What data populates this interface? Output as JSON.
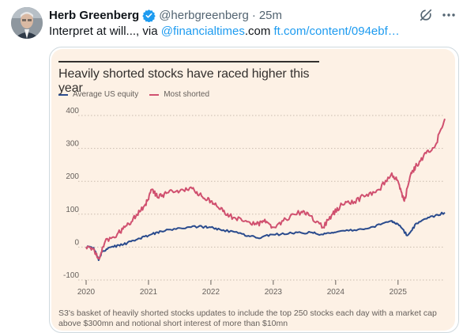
{
  "tweet": {
    "author_name": "Herb Greenberg",
    "handle": "@herbgreenberg",
    "dot": "·",
    "time": "25m",
    "text_plain": "Interpret at will..., via ",
    "mention": "@financialtimes",
    "text_suffix": ".com ",
    "url": "ft.com/content/094ebf…",
    "icons": [
      "verified-badge-icon",
      "grok-icon",
      "more-icon"
    ]
  },
  "chart_data": {
    "type": "line",
    "title": "Heavily shorted stocks have raced higher this year",
    "x_tick_labels": [
      "2020",
      "2021",
      "2022",
      "2023",
      "2024",
      "2025"
    ],
    "y_tick_labels": [
      "400",
      "300",
      "200",
      "100",
      "0",
      "-100"
    ],
    "ylim": [
      -100,
      400
    ],
    "xlim": [
      2020.0,
      2025.75
    ],
    "grid": "horizontal-dotted",
    "legend_position": "top-left",
    "series": [
      {
        "name": "Average US equity",
        "color": "#2a4b8d",
        "x": [
          2020.0,
          2020.12,
          2020.2,
          2020.25,
          2020.4,
          2020.6,
          2020.8,
          2021.0,
          2021.2,
          2021.5,
          2021.8,
          2022.0,
          2022.2,
          2022.5,
          2022.75,
          2023.0,
          2023.3,
          2023.6,
          2023.8,
          2024.0,
          2024.3,
          2024.6,
          2024.9,
          2025.0,
          2025.15,
          2025.3,
          2025.5,
          2025.75
        ],
        "values": [
          0,
          -2,
          -40,
          -15,
          0,
          8,
          22,
          35,
          48,
          58,
          62,
          60,
          52,
          40,
          28,
          38,
          42,
          45,
          38,
          45,
          52,
          62,
          80,
          70,
          35,
          72,
          90,
          105
        ]
      },
      {
        "name": "Most shorted",
        "color": "#d0506f",
        "x": [
          2020.0,
          2020.12,
          2020.2,
          2020.3,
          2020.5,
          2020.65,
          2020.8,
          2020.95,
          2021.05,
          2021.15,
          2021.3,
          2021.5,
          2021.7,
          2021.85,
          2022.0,
          2022.15,
          2022.3,
          2022.5,
          2022.7,
          2022.85,
          2023.0,
          2023.2,
          2023.45,
          2023.6,
          2023.8,
          2023.95,
          2024.1,
          2024.3,
          2024.5,
          2024.7,
          2024.9,
          2025.0,
          2025.1,
          2025.2,
          2025.3,
          2025.45,
          2025.6,
          2025.75
        ],
        "values": [
          0,
          -5,
          -35,
          15,
          40,
          65,
          95,
          130,
          175,
          150,
          165,
          170,
          178,
          155,
          140,
          115,
          95,
          80,
          68,
          78,
          60,
          85,
          108,
          95,
          60,
          100,
          130,
          138,
          160,
          175,
          225,
          200,
          140,
          220,
          250,
          285,
          310,
          390
        ]
      }
    ],
    "footnote": "S3's basket of heavily shorted stocks updates to include the top 250 stocks each day with a market cap above $300mn and notional short interest of more than $10mn"
  }
}
